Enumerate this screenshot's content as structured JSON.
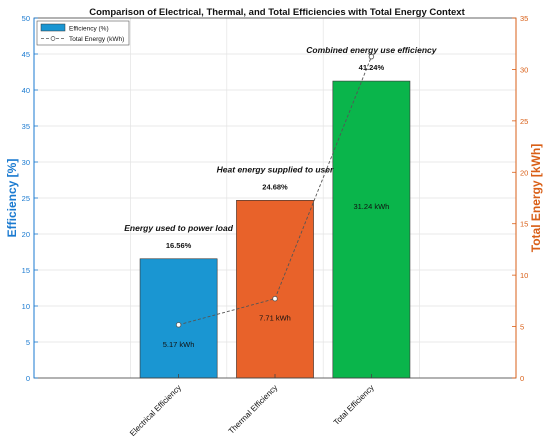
{
  "chart_data": {
    "type": "bar",
    "title": "Comparison of Electrical, Thermal, and Total Efficiencies with Total Energy Context",
    "categories": [
      "Electrical Efficiency",
      "Thermal Efficiency",
      "Total Efficiency"
    ],
    "series": [
      {
        "name": "Efficiency (%)",
        "axis": "left",
        "values": [
          16.56,
          24.68,
          41.24
        ],
        "value_labels": [
          "16.56%",
          "24.68%",
          "41.24%"
        ],
        "colors": [
          "#1a96d2",
          "#e8622a",
          "#0ab54b"
        ]
      },
      {
        "name": "Total Energy (kWh)",
        "axis": "right",
        "kind": "line",
        "values": [
          5.17,
          7.71,
          31.24
        ],
        "value_labels": [
          "5.17 kWh",
          "7.71 kWh",
          "31.24 kWh"
        ],
        "color": "#555555"
      }
    ],
    "annotations": [
      "Energy used to power load",
      "Heat energy supplied to user",
      "Combined energy use efficiency"
    ],
    "ylabel": "Efficiency [%]",
    "y2label": "Total Energy [kWh]",
    "ylim": [
      0,
      50
    ],
    "y2lim": [
      0,
      35
    ],
    "yticks": [
      0,
      5,
      10,
      15,
      20,
      25,
      30,
      35,
      40,
      45,
      50
    ],
    "y2ticks": [
      0,
      5,
      10,
      15,
      20,
      25,
      30,
      35
    ],
    "grid": true,
    "legend_position": "top-left",
    "left_axis_color": "#1a7ad0",
    "right_axis_color": "#d95f17"
  }
}
